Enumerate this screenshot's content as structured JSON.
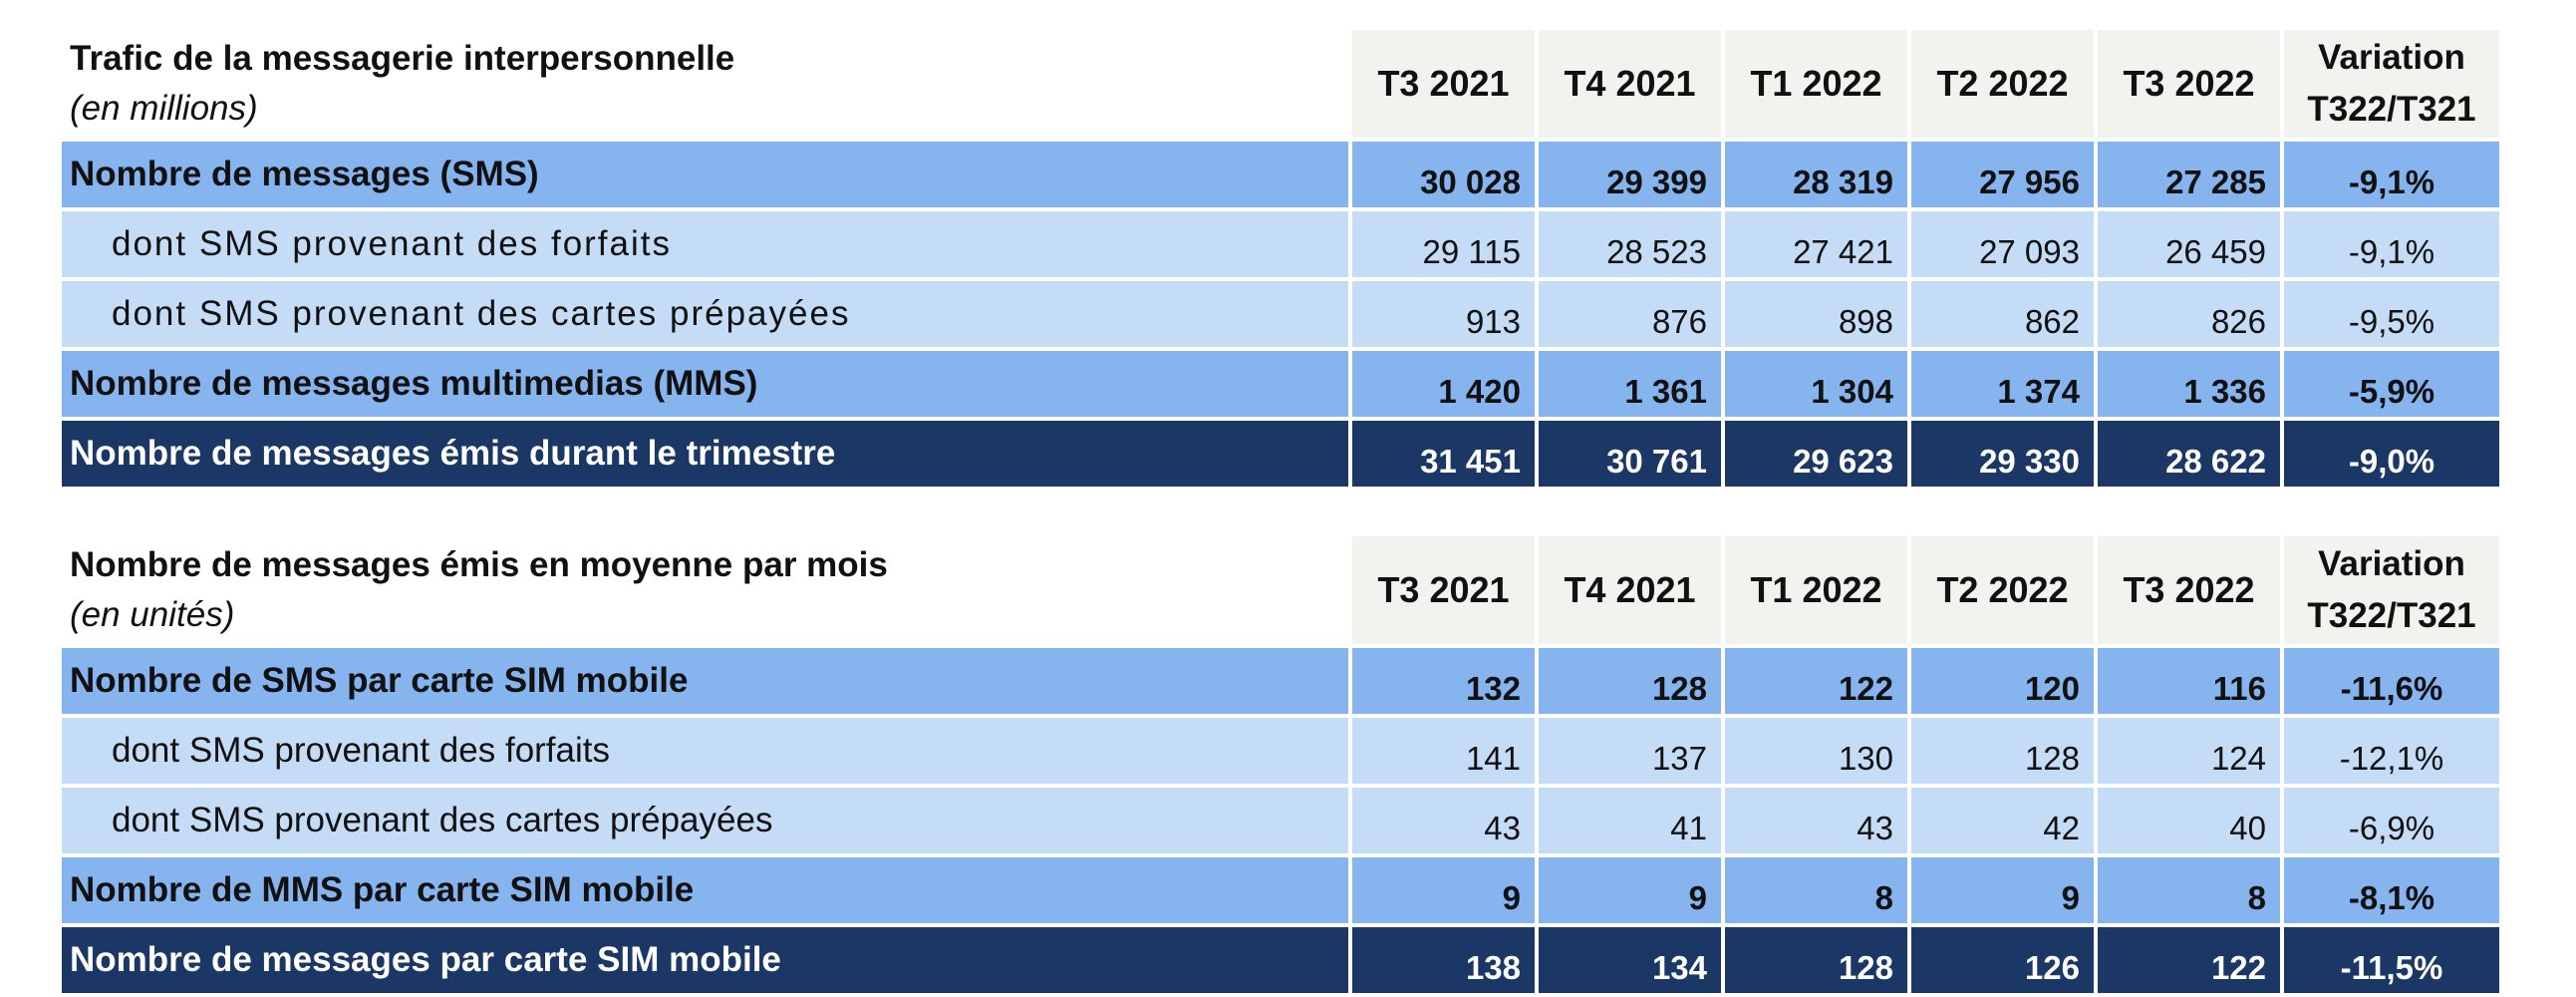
{
  "table1": {
    "title": "Trafic de la messagerie interpersonnelle",
    "unit": "(en millions)",
    "columns": [
      "T3 2021",
      "T4 2021",
      "T1 2022",
      "T2 2022",
      "T3 2022"
    ],
    "variation_header": [
      "Variation",
      "T322/T321"
    ],
    "rows": [
      {
        "label": "Nombre de messages (SMS)",
        "values": [
          "30 028",
          "29 399",
          "28 319",
          "27 956",
          "27 285"
        ],
        "variation": "-9,1%"
      },
      {
        "label": "dont SMS provenant des forfaits",
        "values": [
          "29 115",
          "28 523",
          "27 421",
          "27 093",
          "26 459"
        ],
        "variation": "-9,1%"
      },
      {
        "label": "dont SMS provenant des cartes prépayées",
        "values": [
          "913",
          "876",
          "898",
          "862",
          "826"
        ],
        "variation": "-9,5%"
      },
      {
        "label": "Nombre de messages multimedias (MMS)",
        "values": [
          "1 420",
          "1 361",
          "1 304",
          "1 374",
          "1 336"
        ],
        "variation": "-5,9%"
      },
      {
        "label": "Nombre de messages émis durant le trimestre",
        "values": [
          "31 451",
          "30 761",
          "29 623",
          "29 330",
          "28 622"
        ],
        "variation": "-9,0%"
      }
    ]
  },
  "table2": {
    "title": "Nombre de messages émis en moyenne par mois",
    "unit": "(en unités)",
    "columns": [
      "T3 2021",
      "T4 2021",
      "T1 2022",
      "T2 2022",
      "T3 2022"
    ],
    "variation_header": [
      "Variation",
      "T322/T321"
    ],
    "rows": [
      {
        "label": "Nombre de SMS par carte SIM mobile",
        "values": [
          "132",
          "128",
          "122",
          "120",
          "116"
        ],
        "variation": "-11,6%"
      },
      {
        "label": "dont SMS provenant des forfaits",
        "values": [
          "141",
          "137",
          "130",
          "128",
          "124"
        ],
        "variation": "-12,1%"
      },
      {
        "label": "dont SMS provenant des cartes prépayées",
        "values": [
          "43",
          "41",
          "43",
          "42",
          "40"
        ],
        "variation": "-6,9%"
      },
      {
        "label": "Nombre de MMS par carte SIM mobile",
        "values": [
          "9",
          "9",
          "8",
          "9",
          "8"
        ],
        "variation": "-8,1%"
      },
      {
        "label": "Nombre de messages par carte SIM mobile",
        "values": [
          "138",
          "134",
          "128",
          "126",
          "122"
        ],
        "variation": "-11,5%"
      }
    ]
  },
  "colors": {
    "header_bg": "#f2f2ef",
    "level1_bg": "#85b4ee",
    "level2_bg": "#c5dcf6",
    "total_bg": "#1b3766",
    "total_text": "#ffffff"
  }
}
